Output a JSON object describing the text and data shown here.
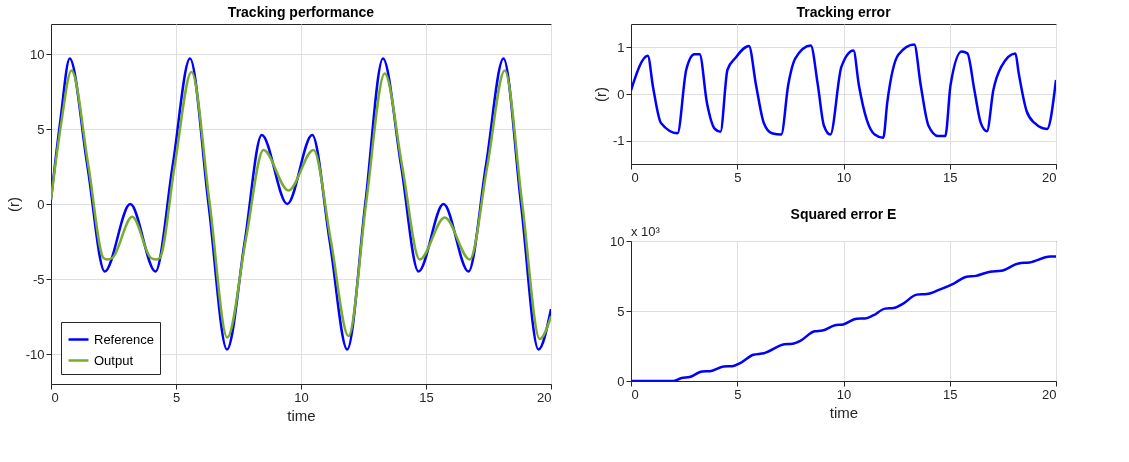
{
  "chart_data": [
    {
      "type": "line",
      "title": "Tracking performance",
      "xlabel": "time",
      "ylabel": "(r)",
      "xlim": [
        0,
        20
      ],
      "ylim": [
        -12,
        12
      ],
      "xticks": [
        0,
        5,
        10,
        15,
        20
      ],
      "yticks": [
        -10,
        -5,
        0,
        5,
        10
      ],
      "grid": true,
      "legend": "bottom left",
      "series": [
        {
          "name": "Reference",
          "color": "#0000ff",
          "x": [
            0,
            0.37,
            0.75,
            1.45,
            2.15,
            3.17,
            4.18,
            4.87,
            5.56,
            6.3,
            7.04,
            7.75,
            8.43,
            9.45,
            10.45,
            11.15,
            11.85,
            12.57,
            13.28,
            14.0,
            14.7,
            15.7,
            16.7,
            17.4,
            18.1,
            18.8,
            19.5,
            20
          ],
          "values": [
            0.3,
            5.5,
            9.7,
            2.6,
            -4.5,
            0,
            -4.5,
            2.6,
            9.7,
            0,
            -9.7,
            -2.5,
            4.6,
            0,
            4.6,
            -2.5,
            -9.7,
            0,
            9.7,
            2.6,
            -4.5,
            0,
            -4.5,
            2.6,
            9.7,
            0,
            -9.7,
            -7.0
          ]
        },
        {
          "name": "Output",
          "color": "#77ac30",
          "x": [
            0,
            0.4,
            0.82,
            1.5,
            2.1,
            2.25,
            2.45,
            3.25,
            4.0,
            4.2,
            4.35,
            4.95,
            5.62,
            6.35,
            7.05,
            7.8,
            8.5,
            9.5,
            10.5,
            11.2,
            11.9,
            12.6,
            13.35,
            14.05,
            14.75,
            15.75,
            16.75,
            17.45,
            18.15,
            18.85,
            19.55,
            20
          ],
          "values": [
            0.3,
            5.3,
            8.9,
            2.5,
            -3.6,
            -3.7,
            -3.6,
            -0.85,
            -3.6,
            -3.7,
            -3.6,
            2.6,
            8.8,
            0,
            -8.9,
            -2.3,
            3.6,
            0.9,
            3.6,
            -2.5,
            -8.8,
            0,
            8.7,
            2.5,
            -3.7,
            -0.9,
            -3.7,
            2.5,
            8.9,
            0,
            -9.0,
            -7.5
          ]
        }
      ]
    },
    {
      "type": "line",
      "title": "Tracking error",
      "ylabel": "(r)",
      "xlim": [
        0,
        20
      ],
      "ylim": [
        -1.5,
        1.5
      ],
      "xticks": [
        0,
        5,
        10,
        15,
        20
      ],
      "yticks": [
        -1,
        0,
        1
      ],
      "grid": true,
      "series": [
        {
          "color": "#0000ff",
          "x": [
            0,
            0.79,
            1.04,
            1.41,
            2.19,
            2.6,
            2.98,
            3.23,
            3.57,
            3.95,
            4.21,
            4.54,
            4.91,
            5.55,
            5.88,
            6.25,
            6.63,
            7.07,
            7.4,
            7.74,
            8.46,
            8.79,
            9.08,
            9.38,
            9.9,
            10.47,
            10.72,
            11.1,
            11.47,
            11.87,
            12.06,
            12.58,
            13.33,
            13.63,
            14.0,
            14.45,
            14.79,
            15.04,
            15.56,
            15.83,
            16.16,
            16.46,
            16.75,
            17.05,
            17.42,
            18.09,
            18.24,
            18.62,
            18.99,
            19.58,
            20
          ],
          "values": [
            0.08,
            0.82,
            0.14,
            -0.62,
            -0.84,
            0.52,
            0.85,
            0.85,
            -0.18,
            -0.75,
            -0.81,
            0.52,
            0.77,
            1.03,
            0.2,
            -0.62,
            -0.84,
            -0.87,
            0.2,
            0.77,
            1.04,
            0.2,
            -0.68,
            -0.87,
            0.58,
            0.93,
            0.2,
            -0.56,
            -0.87,
            -0.94,
            -0.18,
            0.84,
            1.06,
            0.2,
            -0.68,
            -0.9,
            -0.9,
            0.2,
            0.91,
            0.87,
            0.08,
            -0.62,
            -0.8,
            0.08,
            0.58,
            0.87,
            0.46,
            -0.37,
            -0.62,
            -0.75,
            0.3
          ]
        }
      ]
    },
    {
      "type": "line",
      "title": "Squared error  E",
      "xlabel": "time",
      "xlim": [
        0,
        20
      ],
      "ylim": [
        0,
        10
      ],
      "xticks": [
        0,
        5,
        10,
        15,
        20
      ],
      "yticks": [
        0,
        5,
        10
      ],
      "grid": true,
      "annotations": [
        "x 10³"
      ],
      "series": [
        {
          "color": "#0000ff",
          "x": [
            0,
            2.01,
            2.38,
            2.76,
            3.35,
            3.72,
            4.36,
            4.77,
            5.14,
            5.76,
            6.25,
            7.22,
            7.59,
            7.97,
            8.64,
            9.01,
            9.6,
            9.98,
            10.62,
            11.02,
            11.39,
            11.96,
            12.36,
            12.81,
            13.45,
            13.92,
            14.52,
            15.19,
            15.79,
            16.23,
            16.9,
            17.42,
            18.24,
            18.76,
            19.73,
            20
          ],
          "values": [
            0,
            0,
            0.21,
            0.28,
            0.68,
            0.7,
            1.04,
            1.06,
            1.28,
            1.87,
            1.98,
            2.62,
            2.66,
            2.87,
            3.55,
            3.6,
            3.98,
            4.04,
            4.45,
            4.47,
            4.68,
            5.17,
            5.21,
            5.53,
            6.17,
            6.21,
            6.53,
            6.96,
            7.45,
            7.51,
            7.81,
            7.87,
            8.4,
            8.47,
            8.89,
            8.89
          ]
        }
      ]
    }
  ]
}
